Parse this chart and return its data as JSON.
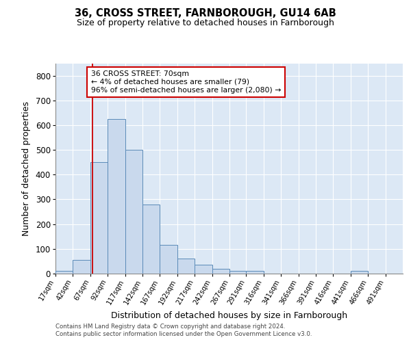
{
  "title1": "36, CROSS STREET, FARNBOROUGH, GU14 6AB",
  "title2": "Size of property relative to detached houses in Farnborough",
  "xlabel": "Distribution of detached houses by size in Farnborough",
  "ylabel": "Number of detached properties",
  "footnote1": "Contains HM Land Registry data © Crown copyright and database right 2024.",
  "footnote2": "Contains public sector information licensed under the Open Government Licence v3.0.",
  "annotation_title": "36 CROSS STREET: 70sqm",
  "annotation_line1": "← 4% of detached houses are smaller (79)",
  "annotation_line2": "96% of semi-detached houses are larger (2,080) →",
  "bar_color": "#c9d9ed",
  "bar_edge_color": "#5a8ab8",
  "red_line_color": "#cc0000",
  "annotation_box_edge_color": "#cc0000",
  "bin_edges": [
    17,
    42,
    67,
    92,
    117,
    142,
    167,
    192,
    217,
    242,
    267,
    291,
    316,
    341,
    366,
    391,
    416,
    441,
    466,
    491,
    516
  ],
  "bar_heights": [
    10,
    55,
    450,
    625,
    500,
    280,
    115,
    60,
    35,
    20,
    10,
    10,
    0,
    0,
    0,
    0,
    0,
    10,
    0,
    0
  ],
  "red_line_x": 70,
  "ylim": [
    0,
    850
  ],
  "yticks": [
    0,
    100,
    200,
    300,
    400,
    500,
    600,
    700,
    800
  ],
  "plot_bg_color": "#dce8f5",
  "grid_color": "#ffffff",
  "fig_bg_color": "#ffffff"
}
